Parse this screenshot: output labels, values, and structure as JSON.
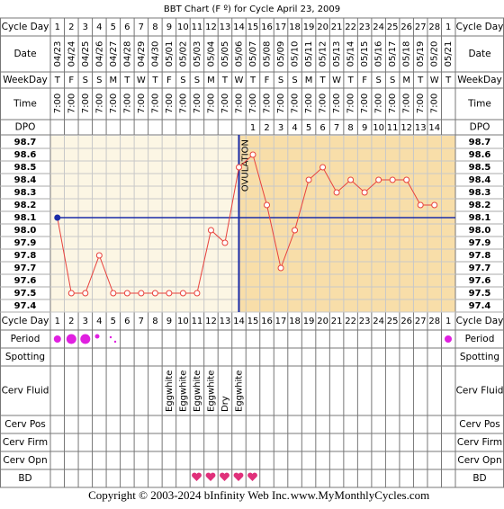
{
  "title": "BBT Chart (F º) for Cycle April 23, 2009",
  "row_labels": [
    "Cycle Day",
    "Date",
    "WeekDay",
    "Time",
    "DPO",
    "Cycle Day",
    "Period",
    "Spotting",
    "Cerv Fluid",
    "Cerv Pos",
    "Cerv Firm",
    "Cerv Opn",
    "BD"
  ],
  "cycle_days": [
    1,
    2,
    3,
    4,
    5,
    6,
    7,
    8,
    9,
    10,
    11,
    12,
    13,
    14,
    15,
    16,
    17,
    18,
    19,
    20,
    21,
    22,
    23,
    24,
    25,
    26,
    27,
    28,
    1
  ],
  "dates": [
    "04/23",
    "04/24",
    "04/25",
    "04/26",
    "04/27",
    "04/28",
    "04/29",
    "04/30",
    "05/01",
    "05/02",
    "05/03",
    "05/04",
    "05/05",
    "05/06",
    "05/07",
    "05/08",
    "05/09",
    "05/10",
    "05/11",
    "05/12",
    "05/13",
    "05/14",
    "05/15",
    "05/16",
    "05/17",
    "05/18",
    "05/19",
    "05/20",
    "05/21"
  ],
  "weekdays": [
    "T",
    "F",
    "S",
    "S",
    "M",
    "T",
    "W",
    "T",
    "F",
    "S",
    "S",
    "M",
    "T",
    "W",
    "T",
    "F",
    "S",
    "S",
    "M",
    "T",
    "W",
    "T",
    "F",
    "S",
    "S",
    "M",
    "T",
    "W",
    "T"
  ],
  "times": [
    "7:00",
    "7:00",
    "7:00",
    "7:00",
    "7:00",
    "7:00",
    "7:00",
    "7:00",
    "7:00",
    "7:00",
    "7:00",
    "7:00",
    "7:00",
    "7:00",
    "7:00",
    "7:00",
    "7:00",
    "7:00",
    "7:00",
    "7:00",
    "7:00",
    "7:00",
    "7:00",
    "7:00",
    "7:00",
    "7:00",
    "7:00",
    "7:00",
    null
  ],
  "dpo": [
    null,
    null,
    null,
    null,
    null,
    null,
    null,
    null,
    null,
    null,
    null,
    null,
    null,
    null,
    1,
    2,
    3,
    4,
    5,
    6,
    7,
    8,
    9,
    10,
    11,
    12,
    13,
    14,
    null
  ],
  "cerv_fluid": [
    null,
    null,
    null,
    null,
    null,
    null,
    null,
    null,
    "Eggwhite",
    "Eggwhite",
    "Eggwhite",
    "Eggwhite",
    "Dry",
    "Eggwhite",
    null,
    null,
    null,
    null,
    null,
    null,
    null,
    null,
    null,
    null,
    null,
    null,
    null,
    null,
    null
  ],
  "chart_data": {
    "type": "line",
    "series": [
      {
        "color": "#e8413c",
        "values": [
          98.1,
          97.5,
          97.5,
          97.8,
          97.5,
          97.5,
          97.5,
          97.5,
          97.5,
          97.5,
          97.5,
          98.0,
          97.9,
          98.5,
          98.6,
          98.2,
          97.7,
          98.0,
          98.4,
          98.5,
          98.3,
          98.4,
          98.3,
          98.4,
          98.4,
          98.4,
          98.2,
          98.2,
          null
        ]
      }
    ],
    "ylim": [
      97.35,
      98.75
    ],
    "yticks": [
      98.7,
      98.6,
      98.5,
      98.4,
      98.3,
      98.2,
      98.1,
      {
        "value": 98.0,
        "label": "98.0"
      },
      97.9,
      97.8,
      97.7,
      97.6,
      97.5,
      97.4
    ],
    "coverline": 98.1,
    "coverline_color": "#1a2ca8",
    "ovulation_day": 14,
    "ovulation_label": "OVULATION"
  },
  "footer": {
    "copyright": "Copyright © 2003-2024 bInfinity Web Inc.",
    "site": "www.MyMonthlyCycles.com"
  }
}
